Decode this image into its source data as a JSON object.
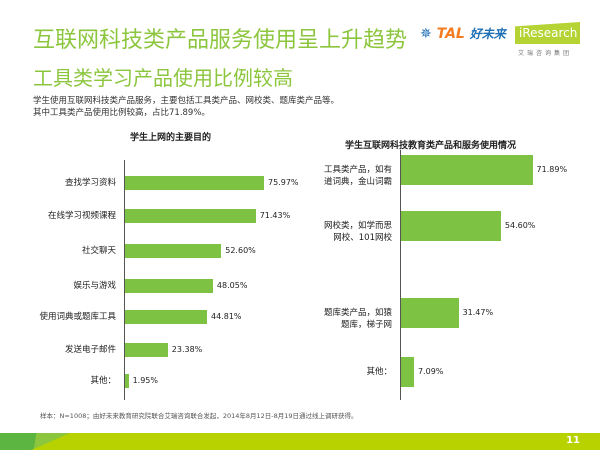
{
  "title": "互联网科技类产品服务使用呈上升趋势",
  "subtitle": "工具类学习产品使用比例较高",
  "description": [
    "学生使用互联网科技类产品服务，主要包括工具类产品、网校类、题库类产品等。",
    "其中工具类产品使用比例较高，占比71.89%。"
  ],
  "logos": {
    "tal": "TAL",
    "tal_cn": "好未来",
    "iresearch": "iResearch",
    "iresearch_cn": "艾瑞咨询集团"
  },
  "footnote": "样本：N=1008；由好未来教育研究院联合艾瑞咨询联合发起，2014年8月12日-8月19日通过线上调研获得。",
  "page_number": "11",
  "colors": {
    "bar": "#7dc242",
    "title": "#8cc63e",
    "band": "#b8d200"
  },
  "chart_data": [
    {
      "type": "bar",
      "orientation": "horizontal",
      "title": "学生上网的主要目的",
      "categories": [
        "查找学习资料",
        "在线学习视频课程",
        "社交聊天",
        "娱乐与游戏",
        "使用词典或题库工具",
        "发送电子邮件",
        "其他："
      ],
      "values": [
        75.97,
        71.43,
        52.6,
        48.05,
        44.81,
        23.38,
        1.95
      ],
      "labels": [
        "75.97%",
        "71.43%",
        "52.60%",
        "48.05%",
        "44.81%",
        "23.38%",
        "1.95%"
      ],
      "unit": "%"
    },
    {
      "type": "bar",
      "orientation": "horizontal",
      "title": "学生互联网科技教育类产品和服务使用情况",
      "categories": [
        "工具类产品，如有道词典，金山词霸",
        "网校类，如学而思网校、101网校",
        "题库类产品，如猿题库，梯子网",
        "其他："
      ],
      "values": [
        71.89,
        54.6,
        31.47,
        7.09
      ],
      "labels": [
        "71.89%",
        "54.60%",
        "31.47%",
        "7.09%"
      ],
      "unit": "%"
    }
  ]
}
